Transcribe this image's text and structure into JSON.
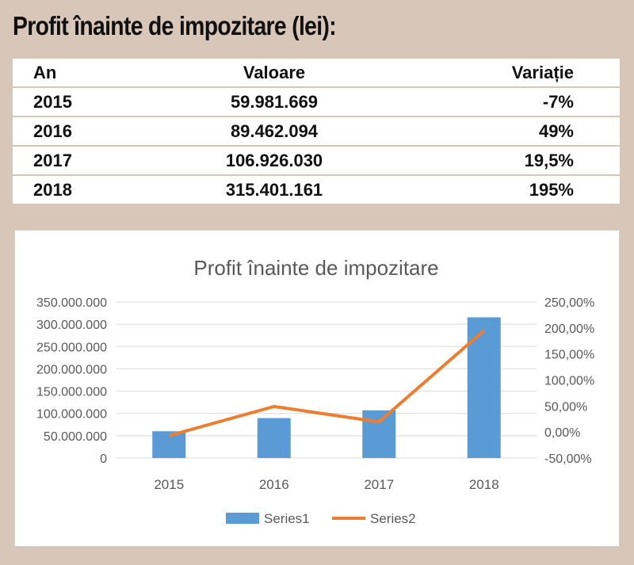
{
  "page": {
    "title": "Profit înainte de impozitare (lei):"
  },
  "table": {
    "headers": [
      "An",
      "Valoare",
      "Variație"
    ],
    "rows": [
      [
        "2015",
        "59.981.669",
        "-7%"
      ],
      [
        "2016",
        "89.462.094",
        "49%"
      ],
      [
        "2017",
        "106.926.030",
        "19,5%"
      ],
      [
        "2018",
        "315.401.161",
        "195%"
      ]
    ]
  },
  "chart_data": {
    "type": "bar",
    "title": "Profit înainte de impozitare",
    "categories": [
      "2015",
      "2016",
      "2017",
      "2018"
    ],
    "series": [
      {
        "name": "Series1",
        "type": "bar",
        "axis": "left",
        "color": "#5b9bd5",
        "values": [
          59981669,
          89462094,
          106926030,
          315401161
        ]
      },
      {
        "name": "Series2",
        "type": "line",
        "axis": "right",
        "color": "#ed7d31",
        "values": [
          -7,
          49,
          19.5,
          195
        ]
      }
    ],
    "y_left": {
      "lim": [
        0,
        350000000
      ],
      "ticks": [
        0,
        50000000,
        100000000,
        150000000,
        200000000,
        250000000,
        300000000,
        350000000
      ],
      "tick_labels": [
        "0",
        "50.000.000",
        "100.000.000",
        "150.000.000",
        "200.000.000",
        "250.000.000",
        "300.000.000",
        "350.000.000"
      ]
    },
    "y_right": {
      "lim": [
        -50,
        250
      ],
      "ticks": [
        -50,
        0,
        50,
        100,
        150,
        200,
        250
      ],
      "tick_labels": [
        "-50,00%",
        "0,00%",
        "50,00%",
        "100,00%",
        "150,00%",
        "200,00%",
        "250,00%"
      ]
    },
    "grid": true,
    "legend": "bottom"
  }
}
